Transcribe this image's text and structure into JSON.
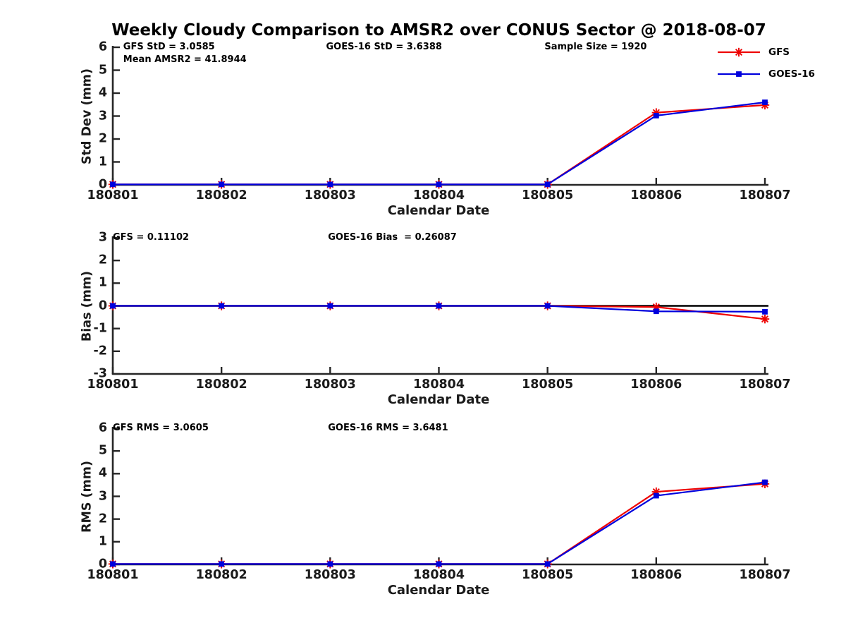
{
  "title": "Weekly Cloudy Comparison to AMSR2 over CONUS Sector @ 2018-08-07",
  "legend": {
    "items": [
      {
        "label": "GFS",
        "color": "#ee0000",
        "marker": "asterisk"
      },
      {
        "label": "GOES-16",
        "color": "#0000dd",
        "marker": "square"
      }
    ]
  },
  "colors": {
    "axis": "#262626",
    "zero_line": "#000000",
    "gfs": "#ee0000",
    "goes16": "#0000dd"
  },
  "chart_data": [
    {
      "type": "line",
      "panel": "std-dev",
      "ylabel": "Std Dev (mm)",
      "xlabel": "Calendar Date",
      "ylim": [
        0,
        6
      ],
      "yticks": [
        "0",
        "1",
        "2",
        "3",
        "4",
        "5",
        "6"
      ],
      "categories": [
        "180801",
        "180802",
        "180803",
        "180804",
        "180805",
        "180806",
        "180807"
      ],
      "annotations": [
        {
          "text": "GFS StD = 3.0585"
        },
        {
          "text": "Mean AMSR2 = 41.8944"
        },
        {
          "text": "GOES-16 StD = 3.6388"
        },
        {
          "text": "Sample Size = 1920"
        }
      ],
      "zero_line": false,
      "grid": false,
      "legend_position": "top-right-outside",
      "series": [
        {
          "name": "GFS",
          "color": "#ee0000",
          "marker": "asterisk",
          "values": [
            0.02,
            0.02,
            0.02,
            0.02,
            0.02,
            3.15,
            3.48
          ]
        },
        {
          "name": "GOES-16",
          "color": "#0000dd",
          "marker": "square",
          "values": [
            0.02,
            0.02,
            0.02,
            0.02,
            0.02,
            3.02,
            3.6
          ]
        }
      ]
    },
    {
      "type": "line",
      "panel": "bias",
      "ylabel": "Bias (mm)",
      "xlabel": "Calendar Date",
      "ylim": [
        -3,
        3
      ],
      "yticks": [
        "-3",
        "-2",
        "-1",
        "0",
        "1",
        "2",
        "3"
      ],
      "categories": [
        "180801",
        "180802",
        "180803",
        "180804",
        "180805",
        "180806",
        "180807"
      ],
      "annotations": [
        {
          "text": "GFS = 0.11102"
        },
        {
          "text": "GOES-16 Bias  = 0.26087"
        }
      ],
      "zero_line": true,
      "grid": false,
      "series": [
        {
          "name": "GFS",
          "color": "#ee0000",
          "marker": "asterisk",
          "values": [
            0,
            0,
            0,
            0,
            0,
            -0.05,
            -0.58
          ]
        },
        {
          "name": "GOES-16",
          "color": "#0000dd",
          "marker": "square",
          "values": [
            0,
            0,
            0,
            0,
            0,
            -0.24,
            -0.26
          ]
        }
      ]
    },
    {
      "type": "line",
      "panel": "rms",
      "ylabel": "RMS (mm)",
      "xlabel": "Calendar Date",
      "ylim": [
        0,
        6
      ],
      "yticks": [
        "0",
        "1",
        "2",
        "3",
        "4",
        "5",
        "6"
      ],
      "categories": [
        "180801",
        "180802",
        "180803",
        "180804",
        "180805",
        "180806",
        "180807"
      ],
      "annotations": [
        {
          "text": "GFS RMS = 3.0605"
        },
        {
          "text": "GOES-16 RMS = 3.6481"
        }
      ],
      "zero_line": false,
      "grid": false,
      "series": [
        {
          "name": "GFS",
          "color": "#ee0000",
          "marker": "asterisk",
          "values": [
            0.02,
            0.02,
            0.02,
            0.02,
            0.02,
            3.2,
            3.55
          ]
        },
        {
          "name": "GOES-16",
          "color": "#0000dd",
          "marker": "square",
          "values": [
            0.02,
            0.02,
            0.02,
            0.02,
            0.02,
            3.03,
            3.62
          ]
        }
      ]
    }
  ]
}
